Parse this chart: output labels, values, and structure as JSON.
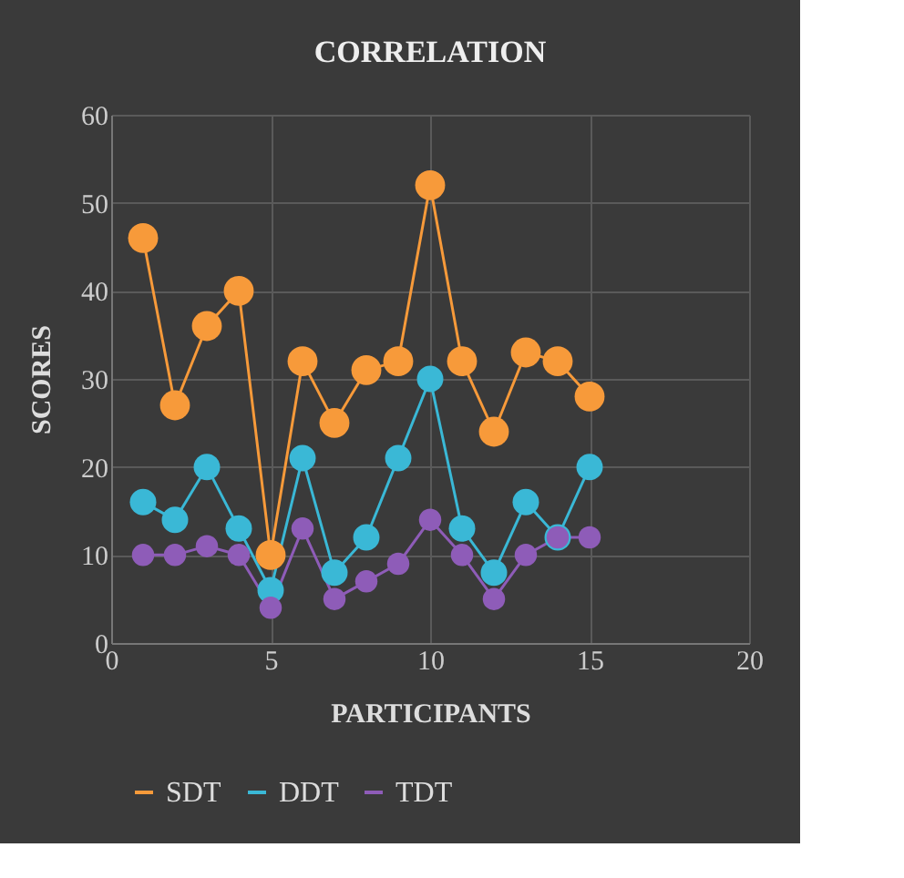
{
  "chart_data": {
    "type": "line",
    "title": "CORRELATION",
    "xlabel": "PARTICIPANTS",
    "ylabel": "SCORES",
    "x": [
      1,
      2,
      3,
      4,
      5,
      6,
      7,
      8,
      9,
      10,
      11,
      12,
      13,
      14,
      15
    ],
    "series": [
      {
        "name": "SDT",
        "color": "#f79a3a",
        "values": [
          46,
          27,
          36,
          40,
          10,
          32,
          25,
          31,
          32,
          52,
          32,
          24,
          33,
          32,
          28
        ]
      },
      {
        "name": "DDT",
        "color": "#3ab8d6",
        "values": [
          16,
          14,
          20,
          13,
          6,
          21,
          8,
          12,
          21,
          30,
          13,
          8,
          16,
          12,
          20
        ]
      },
      {
        "name": "TDT",
        "color": "#8e5cb8",
        "values": [
          10,
          10,
          11,
          10,
          4,
          13,
          5,
          7,
          9,
          14,
          10,
          5,
          10,
          12,
          12
        ]
      }
    ],
    "xlim": [
      0,
      20
    ],
    "xticks": [
      0,
      5,
      10,
      15,
      20
    ],
    "ylim": [
      0,
      60
    ],
    "yticks": [
      0,
      10,
      20,
      30,
      40,
      50,
      60
    ],
    "grid": true,
    "legend": "bottom",
    "marker": "circle",
    "line_style": "solid"
  }
}
